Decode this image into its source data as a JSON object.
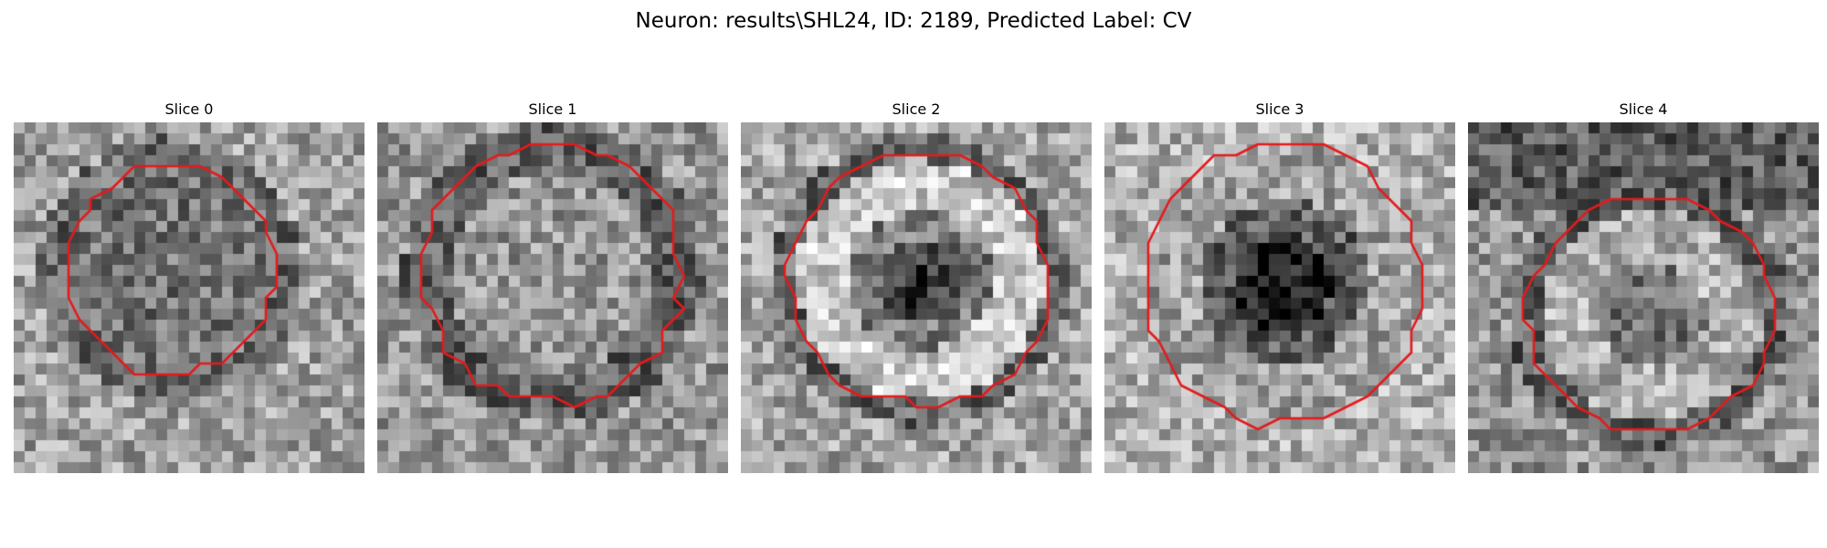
{
  "figure": {
    "title": "Neuron: results\\SHL24, ID: 2189, Predicted Label: CV"
  },
  "panels": [
    {
      "title": "Slice 0",
      "contour_color": "#e31a1c",
      "center": [
        0.45,
        0.42
      ],
      "radius": [
        0.3,
        0.3
      ],
      "center_tone": "dark-noisy"
    },
    {
      "title": "Slice 1",
      "contour_color": "#e31a1c",
      "center": [
        0.5,
        0.43
      ],
      "radius": [
        0.37,
        0.37
      ],
      "center_tone": "mid-noisy"
    },
    {
      "title": "Slice 2",
      "contour_color": "#e31a1c",
      "center": [
        0.51,
        0.45
      ],
      "radius": [
        0.37,
        0.36
      ],
      "center_tone": "dark-nucleus-bright-ring"
    },
    {
      "title": "Slice 3",
      "contour_color": "#e31a1c",
      "center": [
        0.51,
        0.46
      ],
      "radius": [
        0.4,
        0.4
      ],
      "center_tone": "dark-nucleus"
    },
    {
      "title": "Slice 4",
      "contour_color": "#e31a1c",
      "center": [
        0.52,
        0.55
      ],
      "radius": [
        0.35,
        0.33
      ],
      "center_tone": "mid-noisy-bright-ring"
    }
  ]
}
